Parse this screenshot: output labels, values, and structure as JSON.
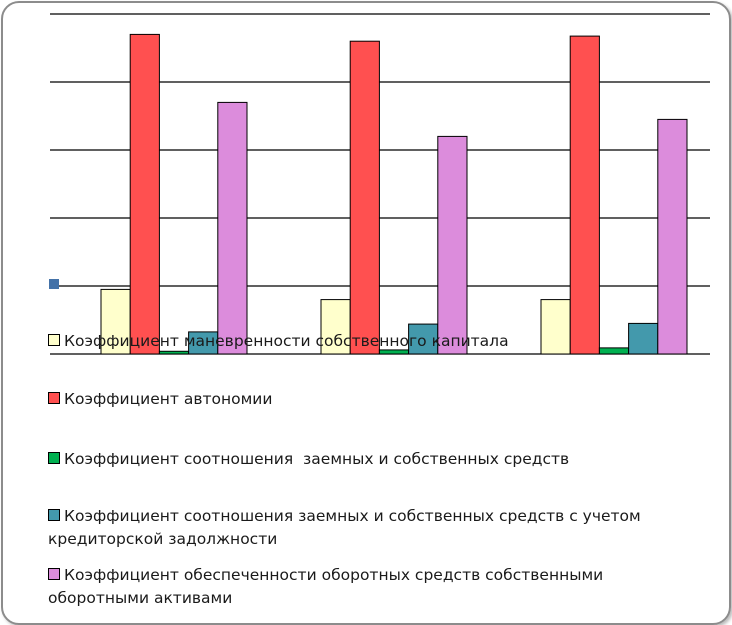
{
  "chart_data": {
    "type": "bar",
    "title": "",
    "xlabel": "",
    "ylabel": "",
    "ylim": [
      0,
      1
    ],
    "grid": true,
    "gridlines": [
      0,
      0.2,
      0.4,
      0.6,
      0.8,
      1.0
    ],
    "categories": [
      "",
      "",
      ""
    ],
    "legend_placement": "bottom (overlapping plot)",
    "series": [
      {
        "name": "Коэффициент маневренности собственного капитала",
        "color": "#ffffcc",
        "values": [
          0.19,
          0.16,
          0.16
        ]
      },
      {
        "name": "Коэффициент автономии",
        "color": "#ff5050",
        "values": [
          0.94,
          0.92,
          0.935
        ]
      },
      {
        "name": "Коэффициент соотношения  заемных и собственных средств",
        "color": "#00b050",
        "values": [
          0.008,
          0.012,
          0.018
        ]
      },
      {
        "name": "Коэффициент соотношения заемных и собственных средств с учетом кредиторской задолжности",
        "color": "#4399ac",
        "values": [
          0.065,
          0.088,
          0.09
        ]
      },
      {
        "name": "Коэффициент обеспеченности оборотных средств собственными оборотными активами",
        "color": "#dc8cdc",
        "values": [
          0.74,
          0.64,
          0.69
        ]
      }
    ]
  }
}
